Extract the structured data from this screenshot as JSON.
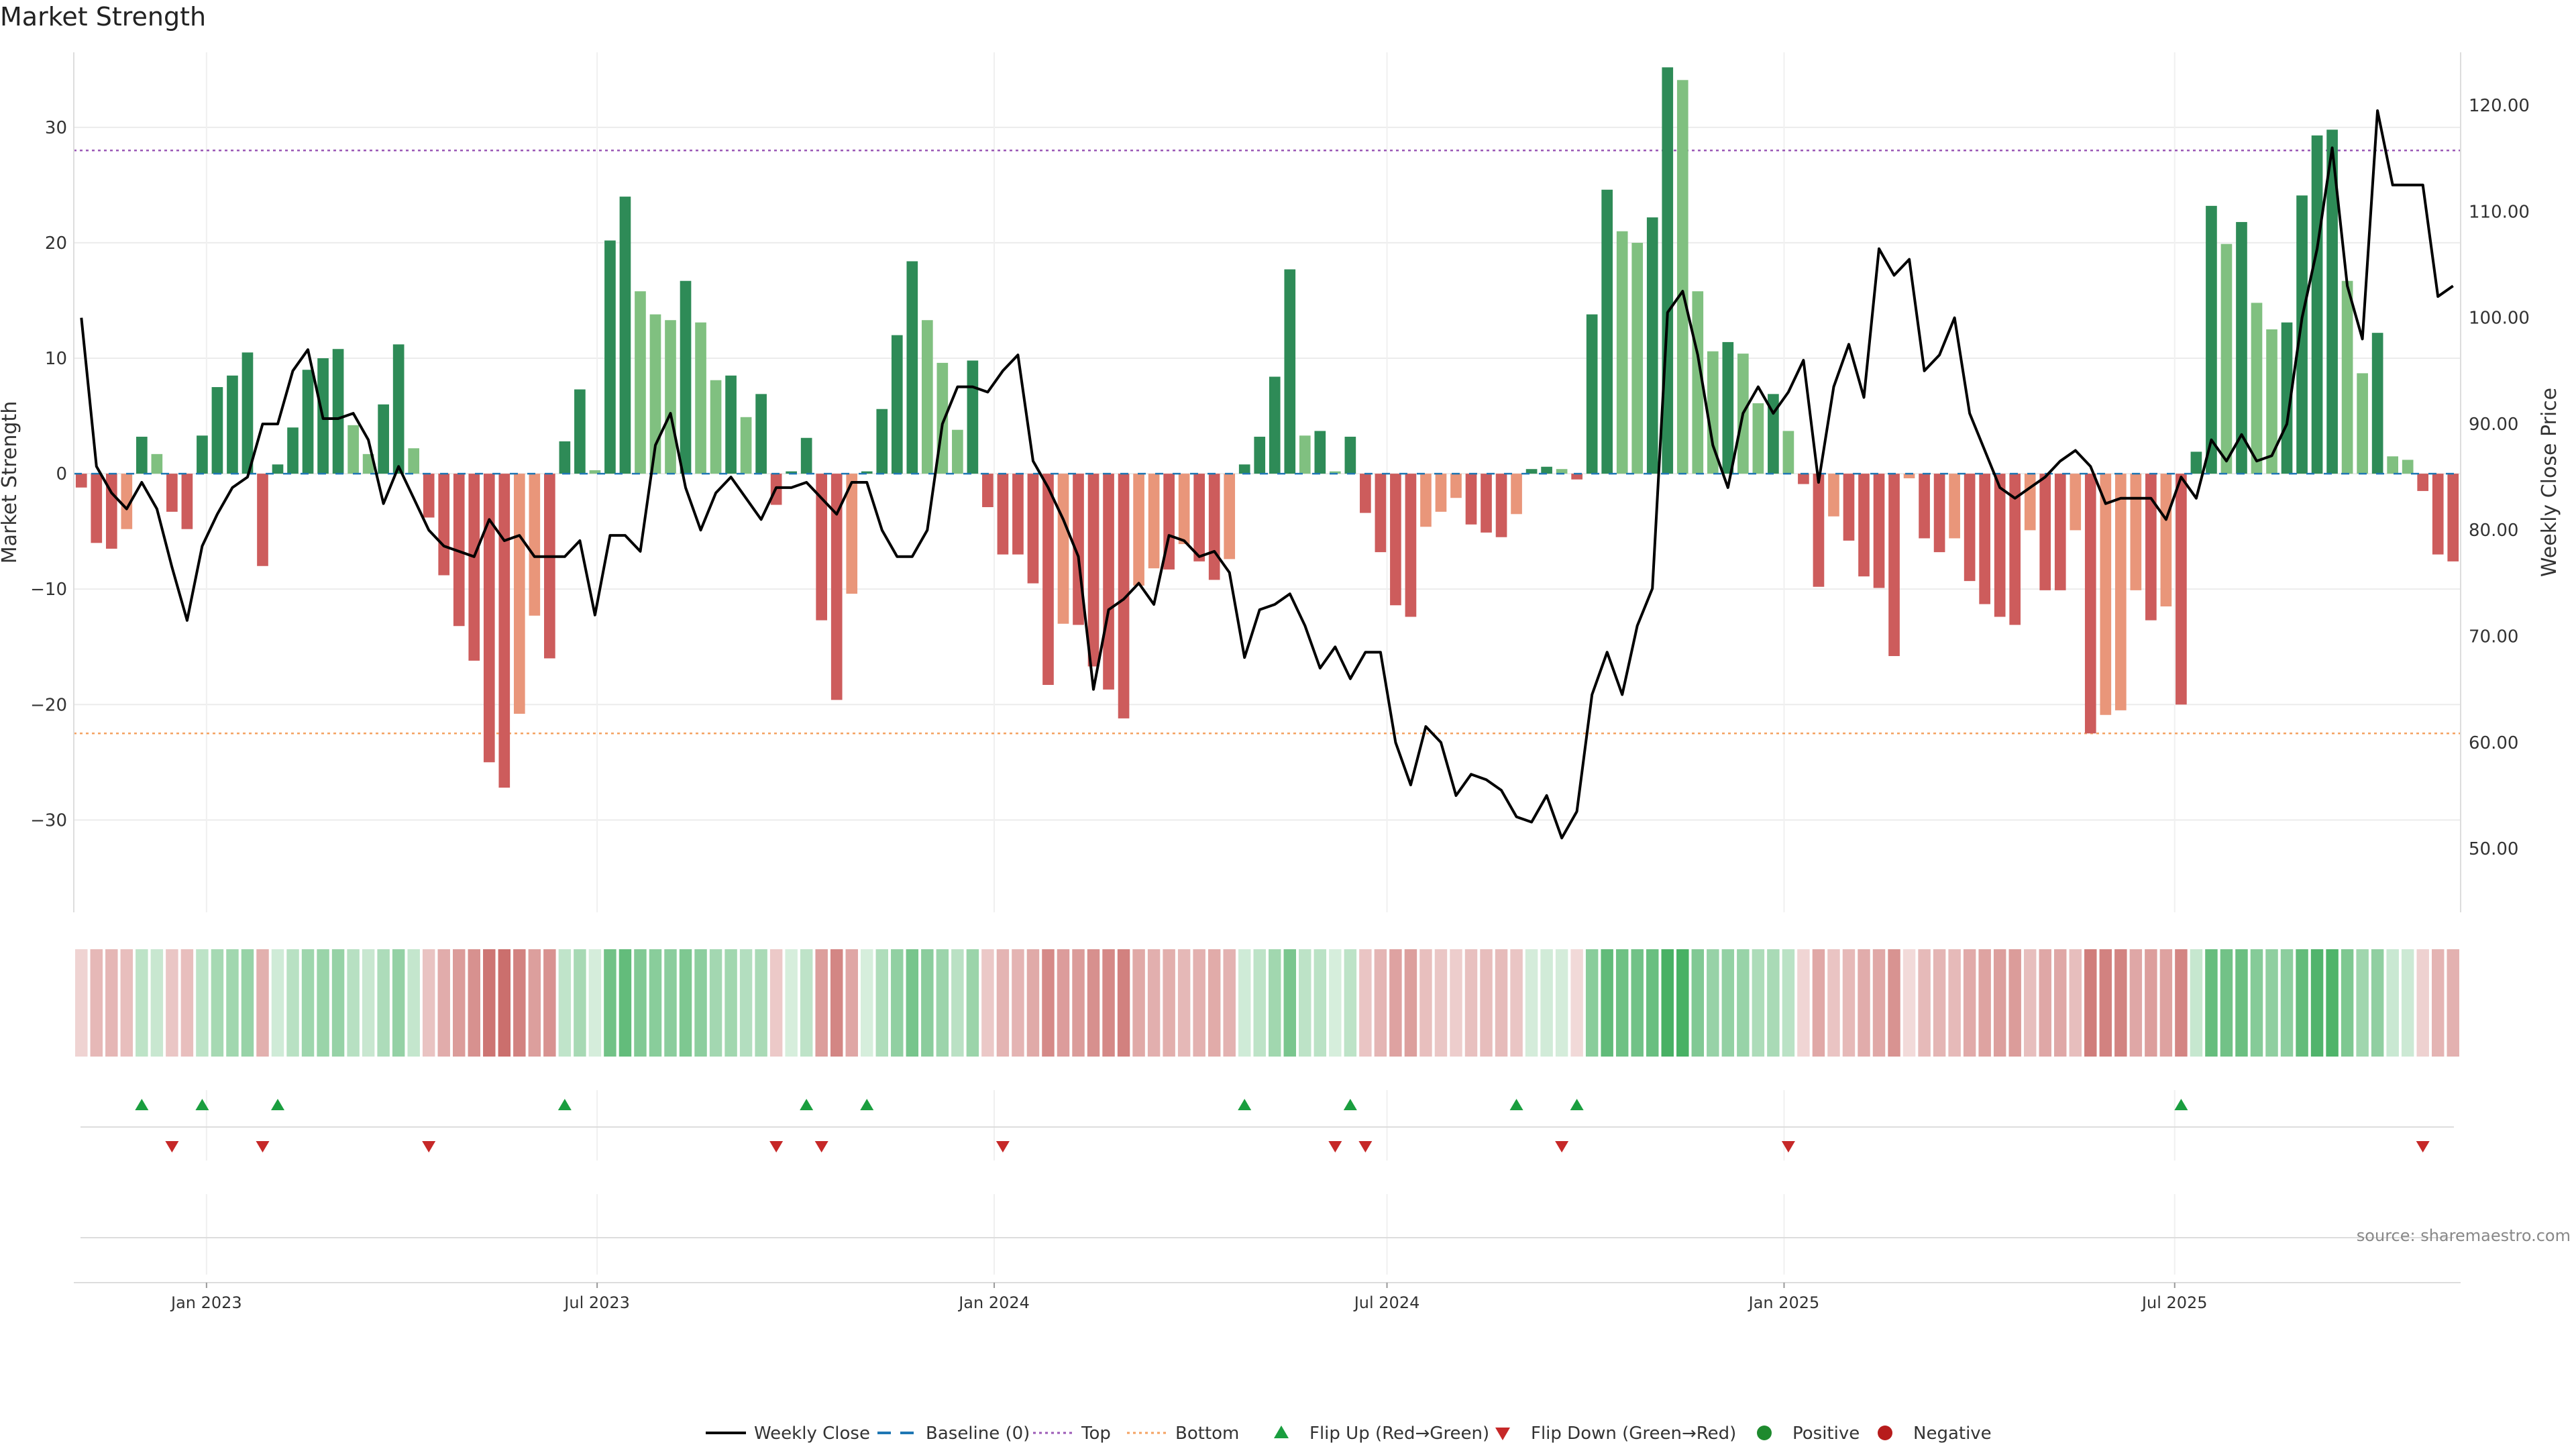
{
  "title": "Market Strength",
  "source": "source: sharemaestro.com",
  "colors": {
    "pos_strong": "#2e8b57",
    "pos_weak": "#80c080",
    "neg_strong": "#cd5c5c",
    "neg_weak": "#e9967a",
    "price_line": "#000000",
    "top_line": "#9b59b6",
    "bottom_line": "#f4a261",
    "baseline": "#1f77b4",
    "flip_up": "#1a9e3f",
    "flip_down": "#c62828",
    "positive_dot": "#1e8a2e",
    "negative_dot": "#b71c1c"
  },
  "legend": [
    {
      "key": "weekly_close",
      "label": "Weekly Close",
      "symbol": "line"
    },
    {
      "key": "baseline",
      "label": "Baseline (0)",
      "symbol": "dash"
    },
    {
      "key": "top",
      "label": "Top",
      "symbol": "dot-line"
    },
    {
      "key": "bottom",
      "label": "Bottom",
      "symbol": "dot-line"
    },
    {
      "key": "flip_up",
      "label": "Flip Up (Red→Green)",
      "symbol": "tri-up"
    },
    {
      "key": "flip_down",
      "label": "Flip Down (Green→Red)",
      "symbol": "tri-down"
    },
    {
      "key": "positive",
      "label": "Positive",
      "symbol": "dot"
    },
    {
      "key": "negative",
      "label": "Negative",
      "symbol": "dot"
    }
  ],
  "chart_data": {
    "type": "bar",
    "title": "Market Strength",
    "x_start": "2022-11-04",
    "x_step_days": 7,
    "x_ticks": [
      "Jan 2023",
      "Jul 2023",
      "Jan 2024",
      "Jul 2024",
      "Jan 2025",
      "Jul 2025"
    ],
    "y_left": {
      "label": "Market Strength",
      "ylim": [
        -38,
        36.5
      ],
      "ticks": [
        30,
        20,
        10,
        0,
        -10,
        -20,
        -30
      ]
    },
    "y_right": {
      "label": "Weekly Close Price",
      "ylim": [
        44,
        125
      ],
      "ticks": [
        "50.00",
        "60.00",
        "70.00",
        "80.00",
        "90.00",
        "100.00",
        "110.00",
        "120.00"
      ]
    },
    "top_threshold": 28,
    "bottom_threshold": -22.5,
    "grid": true,
    "legend_position": "bottom",
    "series": [
      {
        "name": "Market Strength",
        "values": [
          -1.2,
          -6,
          -6.5,
          -4.8,
          3.2,
          1.7,
          -3.3,
          -4.8,
          3.3,
          7.5,
          8.5,
          10.5,
          -8,
          0.8,
          4,
          9,
          10,
          10.8,
          4.2,
          1.7,
          6,
          11.2,
          2.2,
          -3.8,
          -8.8,
          -13.2,
          -16.2,
          -25,
          -27.2,
          -20.8,
          -12.3,
          -16,
          2.8,
          7.3,
          0.3,
          20.2,
          24,
          15.8,
          13.8,
          13.3,
          16.7,
          13.1,
          8.1,
          8.5,
          4.9,
          6.9,
          -2.7,
          0.2,
          3.1,
          -12.7,
          -19.6,
          -10.4,
          0.2,
          5.6,
          12,
          18.4,
          13.3,
          9.6,
          3.8,
          9.8,
          -2.9,
          -7,
          -7,
          -9.5,
          -18.3,
          -13,
          -13.1,
          -16.7,
          -18.7,
          -21.2,
          -9.7,
          -8.2,
          -8.3,
          -6.1,
          -7.6,
          -9.2,
          -7.4,
          0.8,
          3.2,
          8.4,
          17.7,
          3.3,
          3.7,
          0.2,
          3.2,
          -3.4,
          -6.8,
          -11.4,
          -12.4,
          -4.6,
          -3.3,
          -2.1,
          -4.4,
          -5.1,
          -5.5,
          -3.5,
          0.4,
          0.6,
          0.4,
          -0.5,
          13.8,
          24.6,
          21,
          20,
          22.2,
          35.2,
          34.1,
          15.8,
          10.6,
          11.4,
          10.4,
          6.1,
          6.9,
          3.7,
          -0.9,
          -9.8,
          -3.7,
          -5.8,
          -8.9,
          -9.9,
          -15.8,
          -0.4,
          -5.6,
          -6.8,
          -5.6,
          -9.3,
          -11.3,
          -12.4,
          -13.1,
          -4.9,
          -10.1,
          -10.1,
          -4.9,
          -22.5,
          -20.9,
          -20.5,
          -10.1,
          -12.7,
          -11.5,
          -20,
          1.9,
          23.2,
          19.9,
          21.8,
          14.8,
          12.5,
          13.1,
          24.1,
          29.3,
          29.8,
          16.7,
          8.7,
          12.2,
          1.5,
          1.2,
          -1.5,
          -7,
          -7.6
        ]
      },
      {
        "name": "Weekly Close",
        "values": [
          100,
          86,
          83.5,
          82,
          84.5,
          82,
          76.5,
          71.5,
          78.5,
          81.5,
          84,
          85,
          90,
          90,
          95,
          97,
          90.5,
          90.5,
          91,
          88.5,
          82.5,
          86,
          83,
          80,
          78.5,
          78,
          77.5,
          81,
          79,
          79.5,
          77.5,
          77.5,
          77.5,
          79,
          72,
          79.5,
          79.5,
          78,
          88,
          91,
          84,
          80,
          83.5,
          85,
          83,
          81,
          84,
          84,
          84.5,
          83,
          81.5,
          84.5,
          84.5,
          80,
          77.5,
          77.5,
          80,
          90,
          93.5,
          93.5,
          93,
          95,
          96.5,
          86.5,
          84,
          81,
          77.5,
          65,
          72.5,
          73.5,
          75,
          73,
          79.5,
          79,
          77.5,
          78,
          76,
          68,
          72.5,
          73,
          74,
          71,
          67,
          69,
          66,
          68.5,
          68.5,
          60,
          56,
          61.5,
          60,
          55,
          57,
          56.5,
          55.5,
          53,
          52.5,
          55,
          51,
          53.5,
          64.5,
          68.5,
          64.5,
          71,
          74.5,
          100.5,
          102.5,
          96.5,
          88,
          84,
          91,
          93.5,
          91,
          93,
          96,
          84.5,
          93.5,
          97.5,
          92.5,
          106.5,
          104,
          105.5,
          95,
          96.5,
          100,
          91,
          87.5,
          84,
          83,
          84,
          85,
          86.5,
          87.5,
          86,
          82.5,
          83,
          83,
          83,
          81,
          85,
          83,
          88.5,
          86.5,
          89,
          86.5,
          87,
          90,
          100,
          106.5,
          116,
          103,
          98,
          119.5,
          112.5,
          112.5,
          112.5,
          102,
          103
        ]
      }
    ],
    "flip_up_weeks": [
      4,
      8,
      13,
      32,
      48,
      52,
      77,
      84,
      95,
      99,
      139
    ],
    "flip_down_weeks": [
      6,
      12,
      23,
      46,
      49,
      61,
      83,
      85,
      98,
      113,
      155
    ]
  }
}
